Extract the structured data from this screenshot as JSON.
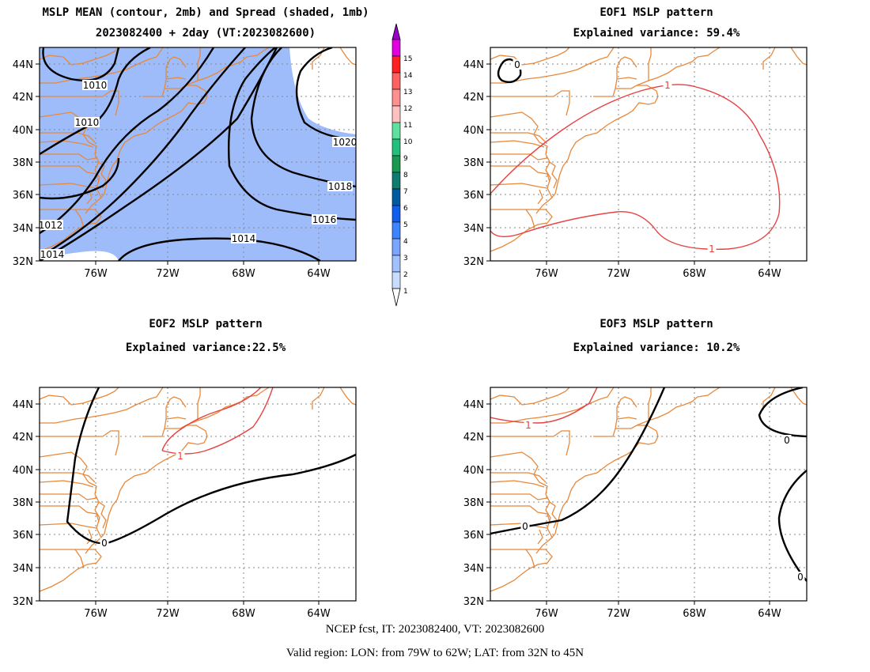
{
  "panels": [
    {
      "title1": "MSLP MEAN (contour, 2mb) and Spread (shaded, 1mb)",
      "title2": "2023082400 + 2day (VT:2023082600)",
      "contour_labels": [
        "1010",
        "1010",
        "1012",
        "1014",
        "1014",
        "1016",
        "1018",
        "1020"
      ]
    },
    {
      "title1": "EOF1 MSLP pattern",
      "title2": "Explained variance: 59.4%",
      "contour_labels": [
        "0",
        "1",
        "1"
      ]
    },
    {
      "title1": "EOF2 MSLP pattern",
      "title2": "Explained variance:22.5%",
      "contour_labels": [
        "1",
        "0"
      ]
    },
    {
      "title1": "EOF3 MSLP pattern",
      "title2": "Explained variance: 10.2%",
      "contour_labels": [
        "1",
        "0",
        "0",
        "0"
      ]
    }
  ],
  "axes": {
    "lat_labels": [
      "32N",
      "34N",
      "36N",
      "38N",
      "40N",
      "42N",
      "44N"
    ],
    "lon_labels": [
      "76W",
      "72W",
      "68W",
      "64W"
    ]
  },
  "colorbar": {
    "levels": [
      "1",
      "2",
      "3",
      "4",
      "5",
      "6",
      "7",
      "8",
      "9",
      "10",
      "11",
      "12",
      "13",
      "14",
      "15"
    ],
    "colors": [
      "#c8dcff",
      "#a0c0ff",
      "#7aa6ff",
      "#3f84ff",
      "#0f5ef0",
      "#005a9e",
      "#0f7c72",
      "#1a9a50",
      "#22c07a",
      "#60e0a0",
      "#ffc0c0",
      "#ff9090",
      "#ff6060",
      "#ff2020",
      "#e000e0",
      "#9900cc"
    ]
  },
  "colors": {
    "coast": "#e8883a",
    "contour": "#000000",
    "eof_positive": "#e84040",
    "shade": "#9ebcfa",
    "grid": "#888888"
  },
  "footer": {
    "line1": "NCEP fcst, IT: 2023082400, VT: 2023082600",
    "line2": "Valid region: LON: from 79W to 62W; LAT: from 32N to 45N"
  }
}
